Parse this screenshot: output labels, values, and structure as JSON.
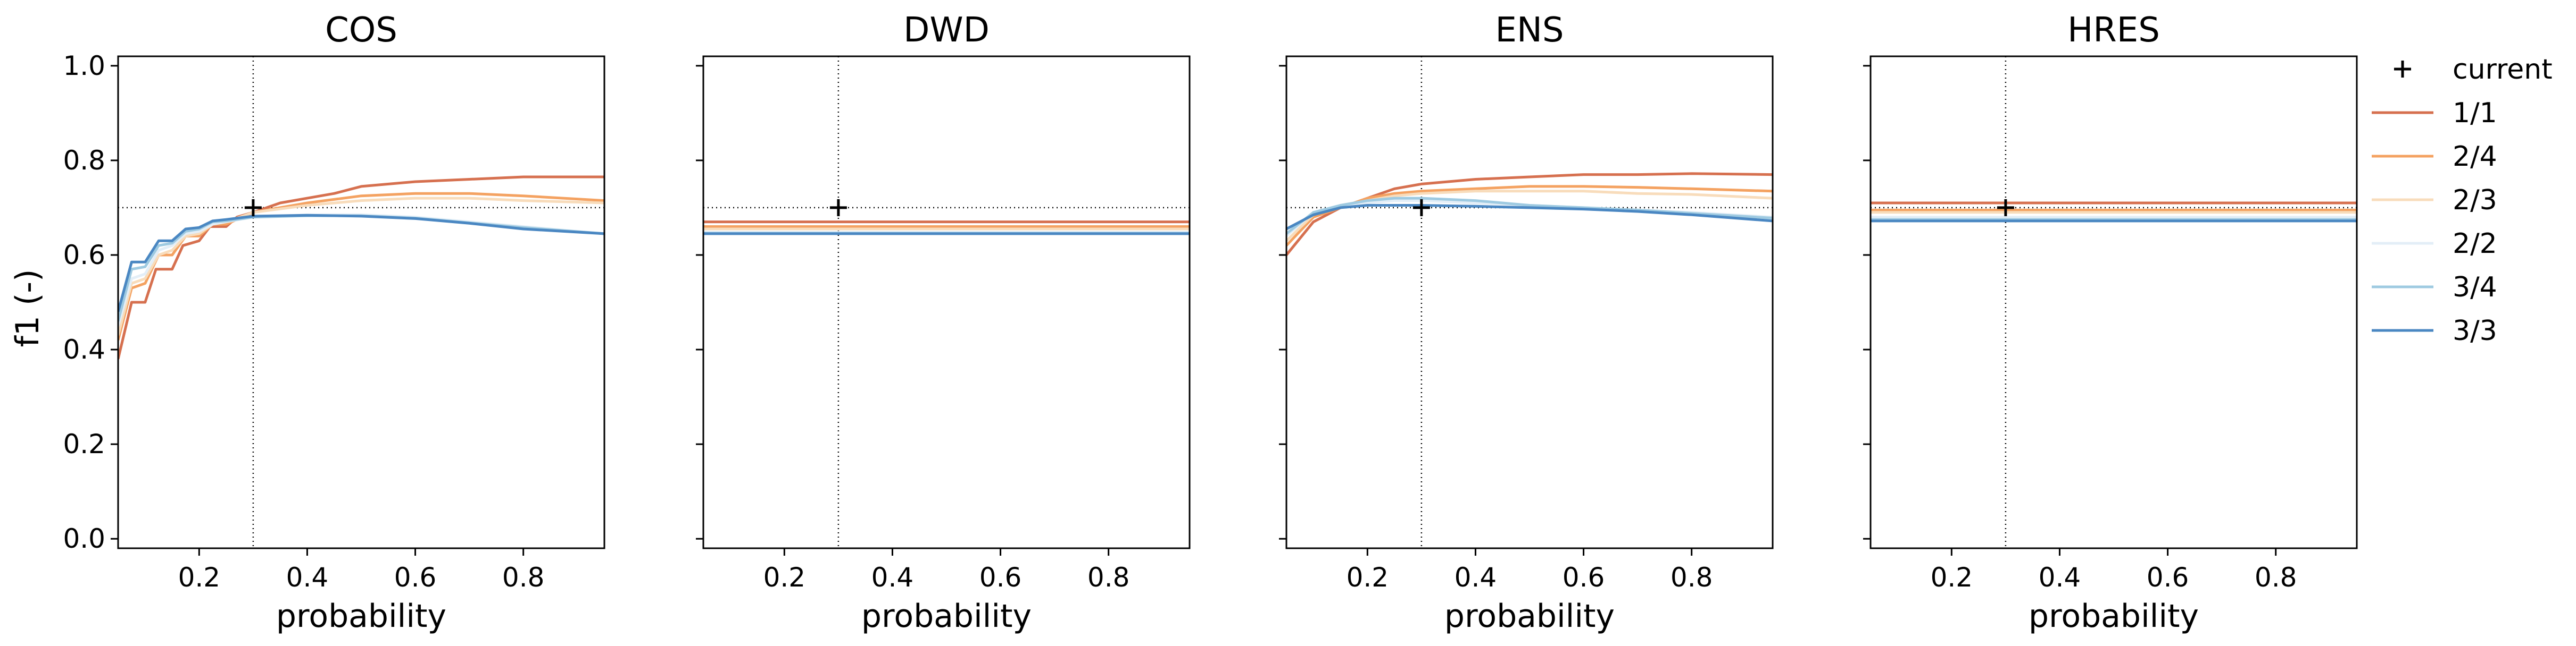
{
  "chart_data": {
    "type": "line",
    "ylabel": "f1 (-)",
    "xlabel": "probability",
    "xlim": [
      0.05,
      0.95
    ],
    "ylim": [
      -0.02,
      1.02
    ],
    "xticks": [
      0.2,
      0.4,
      0.6,
      0.8
    ],
    "xtick_labels": [
      "0.2",
      "0.4",
      "0.6",
      "0.8"
    ],
    "yticks": [
      0.0,
      0.2,
      0.4,
      0.6,
      0.8,
      1.0
    ],
    "ytick_labels": [
      "0.0",
      "0.2",
      "0.4",
      "0.6",
      "0.8",
      "1.0"
    ],
    "reference": {
      "x": 0.3,
      "y": 0.7
    },
    "legend": {
      "placement": "outside-right",
      "entries": [
        {
          "label": "current",
          "marker": "plus",
          "color": "#000000"
        },
        {
          "label": "1/1",
          "color": "#d6704f"
        },
        {
          "label": "2/4",
          "color": "#f4a261"
        },
        {
          "label": "2/3",
          "color": "#f8dcbb"
        },
        {
          "label": "2/2",
          "color": "#e3eef7"
        },
        {
          "label": "3/4",
          "color": "#9ecae1"
        },
        {
          "label": "3/3",
          "color": "#4a87c2"
        }
      ]
    },
    "panels": [
      {
        "title": "COS",
        "current": {
          "x": 0.3,
          "y": 0.7
        },
        "series": [
          {
            "name": "1/1",
            "points": [
              [
                0.05,
                0.38
              ],
              [
                0.075,
                0.5
              ],
              [
                0.1,
                0.5
              ],
              [
                0.12,
                0.57
              ],
              [
                0.15,
                0.57
              ],
              [
                0.17,
                0.62
              ],
              [
                0.2,
                0.63
              ],
              [
                0.22,
                0.66
              ],
              [
                0.25,
                0.66
              ],
              [
                0.27,
                0.68
              ],
              [
                0.3,
                0.69
              ],
              [
                0.35,
                0.71
              ],
              [
                0.4,
                0.72
              ],
              [
                0.45,
                0.73
              ],
              [
                0.5,
                0.745
              ],
              [
                0.6,
                0.755
              ],
              [
                0.7,
                0.76
              ],
              [
                0.8,
                0.765
              ],
              [
                0.95,
                0.765
              ]
            ]
          },
          {
            "name": "2/4",
            "points": [
              [
                0.05,
                0.42
              ],
              [
                0.075,
                0.53
              ],
              [
                0.1,
                0.54
              ],
              [
                0.125,
                0.6
              ],
              [
                0.15,
                0.6
              ],
              [
                0.175,
                0.64
              ],
              [
                0.2,
                0.64
              ],
              [
                0.225,
                0.665
              ],
              [
                0.25,
                0.665
              ],
              [
                0.3,
                0.69
              ],
              [
                0.4,
                0.71
              ],
              [
                0.5,
                0.725
              ],
              [
                0.6,
                0.73
              ],
              [
                0.7,
                0.73
              ],
              [
                0.8,
                0.725
              ],
              [
                0.95,
                0.715
              ]
            ]
          },
          {
            "name": "2/3",
            "points": [
              [
                0.05,
                0.43
              ],
              [
                0.075,
                0.54
              ],
              [
                0.1,
                0.55
              ],
              [
                0.125,
                0.6
              ],
              [
                0.15,
                0.61
              ],
              [
                0.175,
                0.64
              ],
              [
                0.2,
                0.645
              ],
              [
                0.225,
                0.665
              ],
              [
                0.25,
                0.67
              ],
              [
                0.3,
                0.69
              ],
              [
                0.4,
                0.705
              ],
              [
                0.5,
                0.715
              ],
              [
                0.6,
                0.72
              ],
              [
                0.7,
                0.72
              ],
              [
                0.8,
                0.715
              ],
              [
                0.95,
                0.71
              ]
            ]
          },
          {
            "name": "2/2",
            "points": [
              [
                0.05,
                0.45
              ],
              [
                0.075,
                0.55
              ],
              [
                0.1,
                0.56
              ],
              [
                0.125,
                0.61
              ],
              [
                0.15,
                0.62
              ],
              [
                0.175,
                0.645
              ],
              [
                0.2,
                0.65
              ],
              [
                0.225,
                0.665
              ],
              [
                0.25,
                0.67
              ],
              [
                0.3,
                0.68
              ],
              [
                0.4,
                0.685
              ],
              [
                0.5,
                0.685
              ],
              [
                0.6,
                0.68
              ],
              [
                0.7,
                0.67
              ],
              [
                0.8,
                0.66
              ],
              [
                0.95,
                0.645
              ]
            ]
          },
          {
            "name": "3/4",
            "points": [
              [
                0.05,
                0.46
              ],
              [
                0.075,
                0.57
              ],
              [
                0.1,
                0.575
              ],
              [
                0.125,
                0.62
              ],
              [
                0.15,
                0.625
              ],
              [
                0.175,
                0.65
              ],
              [
                0.2,
                0.655
              ],
              [
                0.225,
                0.67
              ],
              [
                0.25,
                0.672
              ],
              [
                0.3,
                0.68
              ],
              [
                0.4,
                0.683
              ],
              [
                0.5,
                0.683
              ],
              [
                0.6,
                0.678
              ],
              [
                0.7,
                0.668
              ],
              [
                0.8,
                0.658
              ],
              [
                0.95,
                0.645
              ]
            ]
          },
          {
            "name": "3/3",
            "points": [
              [
                0.05,
                0.48
              ],
              [
                0.075,
                0.585
              ],
              [
                0.1,
                0.585
              ],
              [
                0.125,
                0.63
              ],
              [
                0.15,
                0.63
              ],
              [
                0.175,
                0.655
              ],
              [
                0.2,
                0.658
              ],
              [
                0.225,
                0.672
              ],
              [
                0.25,
                0.675
              ],
              [
                0.3,
                0.682
              ],
              [
                0.4,
                0.684
              ],
              [
                0.5,
                0.682
              ],
              [
                0.6,
                0.677
              ],
              [
                0.7,
                0.667
              ],
              [
                0.8,
                0.655
              ],
              [
                0.95,
                0.645
              ]
            ]
          }
        ]
      },
      {
        "title": "DWD",
        "current": {
          "x": 0.3,
          "y": 0.7
        },
        "series": [
          {
            "name": "1/1",
            "points": [
              [
                0.05,
                0.67
              ],
              [
                0.95,
                0.67
              ]
            ]
          },
          {
            "name": "2/4",
            "points": [
              [
                0.05,
                0.66
              ],
              [
                0.95,
                0.66
              ]
            ]
          },
          {
            "name": "2/3",
            "points": [
              [
                0.05,
                0.655
              ],
              [
                0.95,
                0.655
              ]
            ]
          },
          {
            "name": "2/2",
            "points": [
              [
                0.05,
                0.648
              ],
              [
                0.95,
                0.648
              ]
            ]
          },
          {
            "name": "3/4",
            "points": [
              [
                0.05,
                0.646
              ],
              [
                0.95,
                0.646
              ]
            ]
          },
          {
            "name": "3/3",
            "points": [
              [
                0.05,
                0.645
              ],
              [
                0.95,
                0.645
              ]
            ]
          }
        ]
      },
      {
        "title": "ENS",
        "current": {
          "x": 0.3,
          "y": 0.7
        },
        "series": [
          {
            "name": "1/1",
            "points": [
              [
                0.05,
                0.6
              ],
              [
                0.1,
                0.67
              ],
              [
                0.15,
                0.7
              ],
              [
                0.2,
                0.72
              ],
              [
                0.25,
                0.74
              ],
              [
                0.3,
                0.75
              ],
              [
                0.4,
                0.76
              ],
              [
                0.5,
                0.765
              ],
              [
                0.6,
                0.77
              ],
              [
                0.7,
                0.77
              ],
              [
                0.8,
                0.772
              ],
              [
                0.95,
                0.77
              ]
            ]
          },
          {
            "name": "2/4",
            "points": [
              [
                0.05,
                0.62
              ],
              [
                0.1,
                0.68
              ],
              [
                0.15,
                0.7
              ],
              [
                0.2,
                0.72
              ],
              [
                0.25,
                0.73
              ],
              [
                0.3,
                0.735
              ],
              [
                0.4,
                0.74
              ],
              [
                0.5,
                0.745
              ],
              [
                0.6,
                0.745
              ],
              [
                0.7,
                0.743
              ],
              [
                0.8,
                0.74
              ],
              [
                0.95,
                0.735
              ]
            ]
          },
          {
            "name": "2/3",
            "points": [
              [
                0.05,
                0.63
              ],
              [
                0.1,
                0.685
              ],
              [
                0.15,
                0.705
              ],
              [
                0.2,
                0.715
              ],
              [
                0.25,
                0.725
              ],
              [
                0.3,
                0.73
              ],
              [
                0.4,
                0.735
              ],
              [
                0.5,
                0.735
              ],
              [
                0.6,
                0.735
              ],
              [
                0.7,
                0.73
              ],
              [
                0.8,
                0.728
              ],
              [
                0.95,
                0.72
              ]
            ]
          },
          {
            "name": "2/2",
            "points": [
              [
                0.05,
                0.64
              ],
              [
                0.1,
                0.69
              ],
              [
                0.15,
                0.705
              ],
              [
                0.2,
                0.71
              ],
              [
                0.25,
                0.715
              ],
              [
                0.3,
                0.715
              ],
              [
                0.4,
                0.71
              ],
              [
                0.5,
                0.705
              ],
              [
                0.6,
                0.7
              ],
              [
                0.7,
                0.695
              ],
              [
                0.8,
                0.69
              ],
              [
                0.95,
                0.68
              ]
            ]
          },
          {
            "name": "3/4",
            "points": [
              [
                0.05,
                0.645
              ],
              [
                0.1,
                0.69
              ],
              [
                0.15,
                0.705
              ],
              [
                0.2,
                0.715
              ],
              [
                0.25,
                0.72
              ],
              [
                0.3,
                0.72
              ],
              [
                0.4,
                0.715
              ],
              [
                0.5,
                0.705
              ],
              [
                0.6,
                0.7
              ],
              [
                0.7,
                0.695
              ],
              [
                0.8,
                0.688
              ],
              [
                0.95,
                0.678
              ]
            ]
          },
          {
            "name": "3/3",
            "points": [
              [
                0.05,
                0.655
              ],
              [
                0.1,
                0.685
              ],
              [
                0.15,
                0.7
              ],
              [
                0.2,
                0.705
              ],
              [
                0.25,
                0.705
              ],
              [
                0.3,
                0.705
              ],
              [
                0.4,
                0.703
              ],
              [
                0.5,
                0.7
              ],
              [
                0.6,
                0.697
              ],
              [
                0.7,
                0.692
              ],
              [
                0.8,
                0.685
              ],
              [
                0.95,
                0.672
              ]
            ]
          }
        ]
      },
      {
        "title": "HRES",
        "current": {
          "x": 0.3,
          "y": 0.7
        },
        "series": [
          {
            "name": "1/1",
            "points": [
              [
                0.05,
                0.71
              ],
              [
                0.95,
                0.71
              ]
            ]
          },
          {
            "name": "2/4",
            "points": [
              [
                0.05,
                0.695
              ],
              [
                0.95,
                0.695
              ]
            ]
          },
          {
            "name": "2/3",
            "points": [
              [
                0.05,
                0.69
              ],
              [
                0.95,
                0.69
              ]
            ]
          },
          {
            "name": "2/2",
            "points": [
              [
                0.05,
                0.68
              ],
              [
                0.95,
                0.68
              ]
            ]
          },
          {
            "name": "3/4",
            "points": [
              [
                0.05,
                0.675
              ],
              [
                0.95,
                0.675
              ]
            ]
          },
          {
            "name": "3/3",
            "points": [
              [
                0.05,
                0.672
              ],
              [
                0.95,
                0.672
              ]
            ]
          }
        ]
      }
    ]
  }
}
